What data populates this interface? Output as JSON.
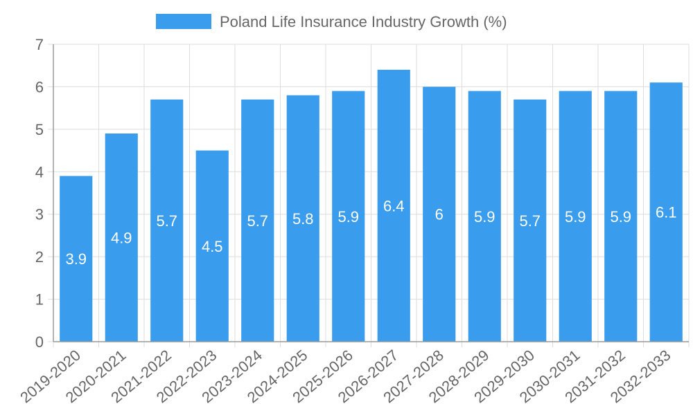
{
  "chart_data": {
    "type": "bar",
    "title": "",
    "legend": {
      "label": "Poland Life Insurance Industry Growth (%)",
      "position": "top"
    },
    "xlabel": "",
    "ylabel": "",
    "ylim": [
      0,
      7
    ],
    "yticks": [
      0,
      1,
      2,
      3,
      4,
      5,
      6,
      7
    ],
    "grid": true,
    "categories": [
      "2019-2020",
      "2020-2021",
      "2021-2022",
      "2022-2023",
      "2023-2024",
      "2024-2025",
      "2025-2026",
      "2026-2027",
      "2027-2028",
      "2028-2029",
      "2029-2030",
      "2030-2031",
      "2031-2032",
      "2032-2033"
    ],
    "series": [
      {
        "name": "Poland Life Insurance Industry Growth (%)",
        "values": [
          3.9,
          4.9,
          5.7,
          4.5,
          5.7,
          5.8,
          5.9,
          6.4,
          6,
          5.9,
          5.7,
          5.9,
          5.9,
          6.1
        ],
        "color": "#3a9ced"
      }
    ],
    "colors": {
      "bar": "#3a9ced",
      "grid": "#dddddd",
      "axis": "#999999",
      "text": "#666666",
      "label": "#ffffff"
    }
  }
}
